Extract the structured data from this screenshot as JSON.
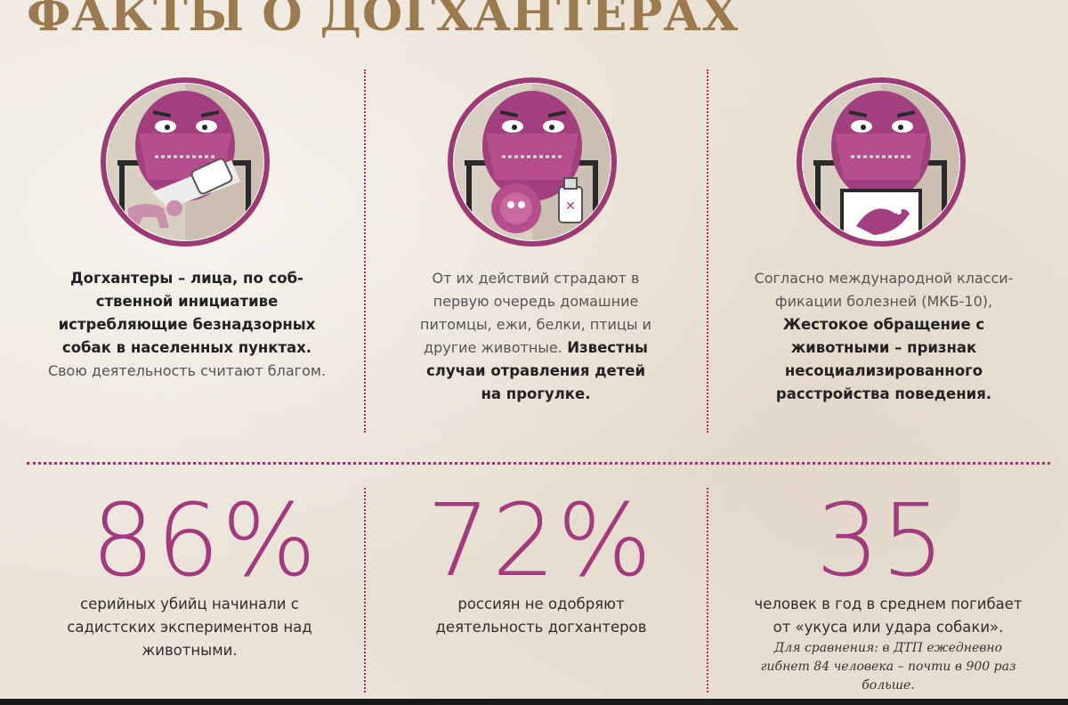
{
  "title": "ФАКТЫ О ДОГХАНТЕРАХ",
  "colors": {
    "accent": "#a33a7f",
    "title": "#9b7a4f",
    "separator": "#b02a6e"
  },
  "portraits": [
    {
      "icon": "doghunter-with-poison-and-dog-icon"
    },
    {
      "icon": "doghunter-with-poison-and-hedgehog-icon"
    },
    {
      "icon": "doghunter-with-bird-in-box-icon"
    }
  ],
  "facts": [
    {
      "lines_bold": [
        "Догхантеры – лица, по соб-",
        "ственной инициативе",
        "истребляющие безнадзорных",
        "собак в населенных пунктах."
      ],
      "line_normal": "Свою деятельность считают благом."
    },
    {
      "lines_normal": [
        "От их действий страдают в",
        "первую очередь домашние",
        "питомцы, ежи, белки, птицы и",
        "другие животные."
      ],
      "inline_bold": "Известны",
      "lines_bold": [
        "случаи отравления детей",
        "на прогулке."
      ]
    },
    {
      "lines_normal": [
        "Согласно международной класси-",
        "фикации болезней (МКБ-10),"
      ],
      "lines_bold": [
        "Жестокое обращение с",
        "животными – признак",
        "несоциализированного",
        "расстройства поведения."
      ]
    }
  ],
  "stats": [
    {
      "number": "86%",
      "caption": [
        "серийных убийц начинали с",
        "садистских экспериментов над",
        "животными."
      ]
    },
    {
      "number": "72%",
      "caption": [
        "россиян не одобряют",
        "деятельность догхантеров"
      ]
    },
    {
      "number": "35",
      "caption": [
        "человек в год в среднем погибает",
        "от «укуса или удара собаки»."
      ],
      "note": [
        "Для сравнения: в ДТП ежедневно",
        "гибнет 84 человека – почти в 900 раз",
        "больше."
      ]
    }
  ]
}
